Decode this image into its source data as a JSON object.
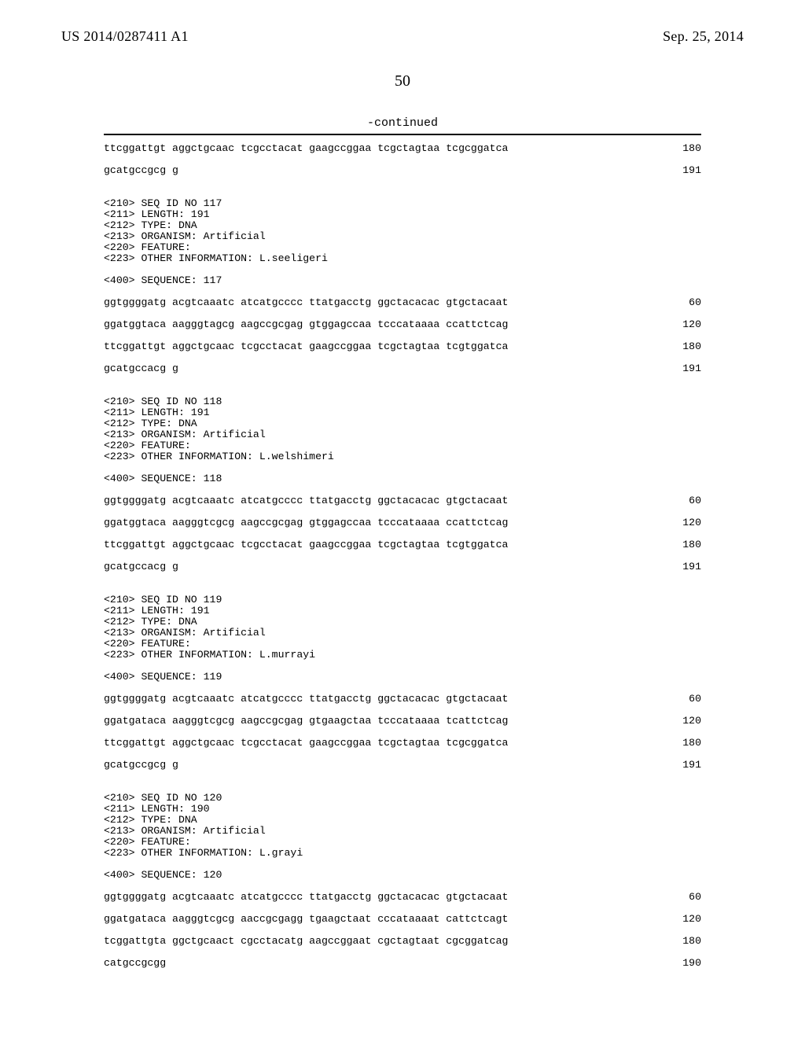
{
  "header": {
    "pub_no": "US 2014/0287411 A1",
    "pub_date": "Sep. 25, 2014",
    "page_num": "50",
    "continued": "-continued"
  },
  "blocks": [
    {
      "pre_lines": [
        {
          "seq": "ttcggattgt aggctgcaac tcgcctacat gaagccggaa tcgctagtaa tcgcggatca",
          "num": "180"
        },
        {
          "gap": true
        },
        {
          "seq": "gcatgccgcg g",
          "num": "191"
        },
        {
          "gap": true
        },
        {
          "gap": true
        }
      ],
      "meta": [
        "<210> SEQ ID NO 117",
        "<211> LENGTH: 191",
        "<212> TYPE: DNA",
        "<213> ORGANISM: Artificial",
        "<220> FEATURE:",
        "<223> OTHER INFORMATION: L.seeligeri"
      ],
      "seq_header": "<400> SEQUENCE: 117",
      "seq_lines": [
        {
          "seq": "ggtggggatg acgtcaaatc atcatgcccc ttatgacctg ggctacacac gtgctacaat",
          "num": "60"
        },
        {
          "gap": true
        },
        {
          "seq": "ggatggtaca aagggtagcg aagccgcgag gtggagccaa tcccataaaa ccattctcag",
          "num": "120"
        },
        {
          "gap": true
        },
        {
          "seq": "ttcggattgt aggctgcaac tcgcctacat gaagccggaa tcgctagtaa tcgtggatca",
          "num": "180"
        },
        {
          "gap": true
        },
        {
          "seq": "gcatgccacg g",
          "num": "191"
        },
        {
          "gap": true
        },
        {
          "gap": true
        }
      ]
    },
    {
      "meta": [
        "<210> SEQ ID NO 118",
        "<211> LENGTH: 191",
        "<212> TYPE: DNA",
        "<213> ORGANISM: Artificial",
        "<220> FEATURE:",
        "<223> OTHER INFORMATION: L.welshimeri"
      ],
      "seq_header": "<400> SEQUENCE: 118",
      "seq_lines": [
        {
          "seq": "ggtggggatg acgtcaaatc atcatgcccc ttatgacctg ggctacacac gtgctacaat",
          "num": "60"
        },
        {
          "gap": true
        },
        {
          "seq": "ggatggtaca aagggtcgcg aagccgcgag gtggagccaa tcccataaaa ccattctcag",
          "num": "120"
        },
        {
          "gap": true
        },
        {
          "seq": "ttcggattgt aggctgcaac tcgcctacat gaagccggaa tcgctagtaa tcgtggatca",
          "num": "180"
        },
        {
          "gap": true
        },
        {
          "seq": "gcatgccacg g",
          "num": "191"
        },
        {
          "gap": true
        },
        {
          "gap": true
        }
      ]
    },
    {
      "meta": [
        "<210> SEQ ID NO 119",
        "<211> LENGTH: 191",
        "<212> TYPE: DNA",
        "<213> ORGANISM: Artificial",
        "<220> FEATURE:",
        "<223> OTHER INFORMATION: L.murrayi"
      ],
      "seq_header": "<400> SEQUENCE: 119",
      "seq_lines": [
        {
          "seq": "ggtggggatg acgtcaaatc atcatgcccc ttatgacctg ggctacacac gtgctacaat",
          "num": "60"
        },
        {
          "gap": true
        },
        {
          "seq": "ggatgataca aagggtcgcg aagccgcgag gtgaagctaa tcccataaaa tcattctcag",
          "num": "120"
        },
        {
          "gap": true
        },
        {
          "seq": "ttcggattgt aggctgcaac tcgcctacat gaagccggaa tcgctagtaa tcgcggatca",
          "num": "180"
        },
        {
          "gap": true
        },
        {
          "seq": "gcatgccgcg g",
          "num": "191"
        },
        {
          "gap": true
        },
        {
          "gap": true
        }
      ]
    },
    {
      "meta": [
        "<210> SEQ ID NO 120",
        "<211> LENGTH: 190",
        "<212> TYPE: DNA",
        "<213> ORGANISM: Artificial",
        "<220> FEATURE:",
        "<223> OTHER INFORMATION: L.grayi"
      ],
      "seq_header": "<400> SEQUENCE: 120",
      "seq_lines": [
        {
          "seq": "ggtggggatg acgtcaaatc atcatgcccc ttatgacctg ggctacacac gtgctacaat",
          "num": "60"
        },
        {
          "gap": true
        },
        {
          "seq": "ggatgataca aagggtcgcg aaccgcgagg tgaagctaat cccataaaat cattctcagt",
          "num": "120"
        },
        {
          "gap": true
        },
        {
          "seq": "tcggattgta ggctgcaact cgcctacatg aagccggaat cgctagtaat cgcggatcag",
          "num": "180"
        },
        {
          "gap": true
        },
        {
          "seq": "catgccgcgg",
          "num": "190"
        }
      ]
    }
  ]
}
